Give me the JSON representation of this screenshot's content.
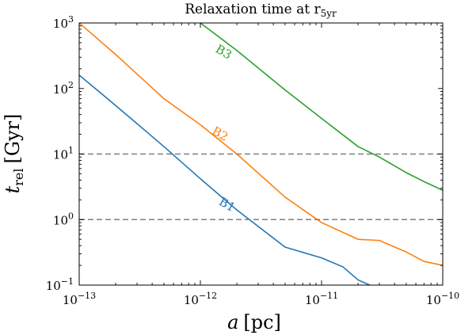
{
  "chart_data": {
    "type": "line",
    "title": "Relaxation time at r_5yr",
    "title_parts": {
      "main": "Relaxation time at r",
      "sub": "5yr"
    },
    "xlabel": "a [pc]",
    "xlabel_parts": {
      "symbol": "a",
      "unit": "[pc]"
    },
    "ylabel": "t_rel [Gyr]",
    "ylabel_parts": {
      "symbol": "t",
      "sub": "rel",
      "unit": "[Gyr]"
    },
    "xscale": "log",
    "yscale": "log",
    "xlim": [
      1e-13,
      1e-10
    ],
    "ylim": [
      0.1,
      1000
    ],
    "grid": false,
    "legend": "none",
    "xticks": [
      {
        "value": 1e-13,
        "base": "10",
        "exp": "−13"
      },
      {
        "value": 1e-12,
        "base": "10",
        "exp": "−12"
      },
      {
        "value": 1e-11,
        "base": "10",
        "exp": "−11"
      },
      {
        "value": 1e-10,
        "base": "10",
        "exp": "−10"
      }
    ],
    "yticks": [
      {
        "value": 0.1,
        "base": "10",
        "exp": "−1"
      },
      {
        "value": 1,
        "base": "10",
        "exp": "0"
      },
      {
        "value": 10,
        "base": "10",
        "exp": "1"
      },
      {
        "value": 100,
        "base": "10",
        "exp": "2"
      },
      {
        "value": 1000,
        "base": "10",
        "exp": "3"
      }
    ],
    "hlines": [
      {
        "y": 10,
        "color": "#7f7f7f",
        "style": "dashed"
      },
      {
        "y": 1,
        "color": "#7f7f7f",
        "style": "dashed"
      }
    ],
    "series": [
      {
        "name": "B1",
        "color": "#1f77b4",
        "label_at": {
          "x": 1.6e-12,
          "y": 1.5
        },
        "x": [
          1e-13,
          2e-13,
          5e-13,
          1e-12,
          2e-12,
          5e-12,
          1e-11,
          1.5e-11,
          2e-11,
          2.5e-11
        ],
        "y": [
          160,
          55,
          13,
          4.2,
          1.4,
          0.38,
          0.26,
          0.19,
          0.12,
          0.1
        ]
      },
      {
        "name": "B2",
        "color": "#ff7f0e",
        "label_at": {
          "x": 1.4e-12,
          "y": 18
        },
        "x": [
          1e-13,
          2e-13,
          5e-13,
          1e-12,
          2e-12,
          5e-12,
          1e-11,
          2e-11,
          3e-11,
          5e-11,
          7e-11,
          1e-10
        ],
        "y": [
          1000,
          330,
          70,
          28,
          10,
          2.2,
          0.9,
          0.5,
          0.48,
          0.32,
          0.23,
          0.2
        ]
      },
      {
        "name": "B3",
        "color": "#2ca02c",
        "label_at": {
          "x": 1.5e-12,
          "y": 320
        },
        "x": [
          1e-12,
          2e-12,
          5e-12,
          1e-11,
          2e-11,
          3e-11,
          5e-11,
          7e-11,
          1e-10
        ],
        "y": [
          1000,
          380,
          95,
          35,
          13,
          9,
          5.2,
          3.8,
          2.8
        ]
      }
    ]
  }
}
